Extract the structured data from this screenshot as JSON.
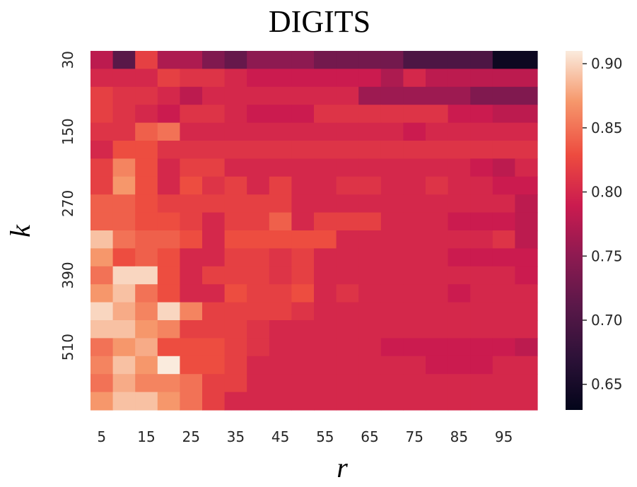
{
  "chart_data": {
    "type": "heatmap",
    "title": "DIGITS",
    "xlabel": "r",
    "ylabel": "k",
    "x_tick_labels": [
      "5",
      "15",
      "25",
      "35",
      "45",
      "55",
      "65",
      "75",
      "85",
      "95"
    ],
    "y_tick_labels": [
      "30",
      "150",
      "270",
      "390",
      "510"
    ],
    "x": [
      5,
      10,
      15,
      20,
      25,
      30,
      35,
      40,
      45,
      50,
      55,
      60,
      65,
      70,
      75,
      80,
      85,
      90,
      95,
      100
    ],
    "y": [
      30,
      60,
      90,
      120,
      150,
      180,
      210,
      240,
      270,
      300,
      330,
      360,
      390,
      420,
      450,
      480,
      510,
      540,
      570,
      600
    ],
    "colorbar": {
      "range": [
        0.63,
        0.91
      ],
      "ticks": [
        "0.65",
        "0.70",
        "0.75",
        "0.80",
        "0.85",
        "0.90"
      ]
    },
    "values": [
      [
        0.78,
        0.71,
        0.82,
        0.77,
        0.77,
        0.74,
        0.72,
        0.75,
        0.75,
        0.75,
        0.73,
        0.73,
        0.73,
        0.73,
        0.7,
        0.7,
        0.7,
        0.7,
        0.64,
        0.64
      ],
      [
        0.8,
        0.8,
        0.8,
        0.82,
        0.81,
        0.81,
        0.8,
        0.79,
        0.79,
        0.79,
        0.79,
        0.79,
        0.79,
        0.77,
        0.8,
        0.78,
        0.78,
        0.78,
        0.78,
        0.78
      ],
      [
        0.82,
        0.81,
        0.81,
        0.8,
        0.78,
        0.8,
        0.8,
        0.8,
        0.8,
        0.8,
        0.8,
        0.8,
        0.76,
        0.76,
        0.76,
        0.76,
        0.76,
        0.74,
        0.74,
        0.74
      ],
      [
        0.82,
        0.81,
        0.8,
        0.79,
        0.81,
        0.81,
        0.8,
        0.79,
        0.79,
        0.79,
        0.81,
        0.81,
        0.81,
        0.81,
        0.81,
        0.81,
        0.79,
        0.79,
        0.78,
        0.78
      ],
      [
        0.81,
        0.81,
        0.84,
        0.85,
        0.8,
        0.8,
        0.8,
        0.8,
        0.8,
        0.8,
        0.8,
        0.8,
        0.8,
        0.8,
        0.79,
        0.8,
        0.8,
        0.8,
        0.8,
        0.8
      ],
      [
        0.8,
        0.83,
        0.83,
        0.81,
        0.81,
        0.81,
        0.81,
        0.81,
        0.81,
        0.81,
        0.81,
        0.81,
        0.81,
        0.81,
        0.81,
        0.81,
        0.81,
        0.81,
        0.81,
        0.81
      ],
      [
        0.82,
        0.86,
        0.83,
        0.8,
        0.82,
        0.82,
        0.8,
        0.8,
        0.8,
        0.8,
        0.8,
        0.8,
        0.8,
        0.8,
        0.8,
        0.8,
        0.8,
        0.79,
        0.78,
        0.8
      ],
      [
        0.82,
        0.87,
        0.83,
        0.8,
        0.83,
        0.81,
        0.82,
        0.8,
        0.82,
        0.8,
        0.8,
        0.81,
        0.81,
        0.8,
        0.8,
        0.81,
        0.8,
        0.8,
        0.79,
        0.79
      ],
      [
        0.84,
        0.84,
        0.83,
        0.82,
        0.82,
        0.82,
        0.82,
        0.82,
        0.82,
        0.8,
        0.8,
        0.8,
        0.8,
        0.8,
        0.8,
        0.8,
        0.8,
        0.8,
        0.8,
        0.78
      ],
      [
        0.84,
        0.84,
        0.83,
        0.83,
        0.82,
        0.8,
        0.82,
        0.82,
        0.84,
        0.8,
        0.82,
        0.82,
        0.82,
        0.8,
        0.8,
        0.8,
        0.79,
        0.79,
        0.79,
        0.78
      ],
      [
        0.89,
        0.85,
        0.84,
        0.84,
        0.83,
        0.8,
        0.83,
        0.83,
        0.83,
        0.83,
        0.83,
        0.8,
        0.8,
        0.8,
        0.8,
        0.8,
        0.8,
        0.8,
        0.81,
        0.78
      ],
      [
        0.87,
        0.83,
        0.84,
        0.83,
        0.8,
        0.8,
        0.82,
        0.82,
        0.81,
        0.82,
        0.8,
        0.8,
        0.8,
        0.8,
        0.8,
        0.8,
        0.79,
        0.79,
        0.79,
        0.79
      ],
      [
        0.85,
        0.9,
        0.9,
        0.83,
        0.8,
        0.82,
        0.82,
        0.82,
        0.81,
        0.82,
        0.8,
        0.8,
        0.8,
        0.8,
        0.8,
        0.8,
        0.8,
        0.8,
        0.8,
        0.79
      ],
      [
        0.87,
        0.89,
        0.85,
        0.83,
        0.8,
        0.8,
        0.83,
        0.82,
        0.82,
        0.83,
        0.8,
        0.81,
        0.8,
        0.8,
        0.8,
        0.8,
        0.79,
        0.8,
        0.8,
        0.8
      ],
      [
        0.9,
        0.88,
        0.86,
        0.9,
        0.86,
        0.82,
        0.82,
        0.82,
        0.82,
        0.81,
        0.8,
        0.8,
        0.8,
        0.8,
        0.8,
        0.8,
        0.8,
        0.8,
        0.8,
        0.8
      ],
      [
        0.89,
        0.89,
        0.87,
        0.86,
        0.82,
        0.82,
        0.82,
        0.81,
        0.8,
        0.8,
        0.8,
        0.8,
        0.8,
        0.8,
        0.8,
        0.8,
        0.8,
        0.8,
        0.8,
        0.8
      ],
      [
        0.85,
        0.87,
        0.88,
        0.83,
        0.83,
        0.83,
        0.82,
        0.81,
        0.8,
        0.8,
        0.8,
        0.8,
        0.8,
        0.79,
        0.79,
        0.79,
        0.79,
        0.79,
        0.79,
        0.78
      ],
      [
        0.86,
        0.89,
        0.87,
        0.91,
        0.83,
        0.83,
        0.82,
        0.8,
        0.8,
        0.8,
        0.8,
        0.8,
        0.8,
        0.8,
        0.8,
        0.79,
        0.79,
        0.79,
        0.8,
        0.8
      ],
      [
        0.85,
        0.88,
        0.86,
        0.86,
        0.85,
        0.82,
        0.82,
        0.8,
        0.8,
        0.8,
        0.8,
        0.8,
        0.8,
        0.8,
        0.8,
        0.8,
        0.8,
        0.8,
        0.8,
        0.8
      ],
      [
        0.87,
        0.89,
        0.89,
        0.87,
        0.85,
        0.82,
        0.8,
        0.8,
        0.8,
        0.8,
        0.8,
        0.8,
        0.8,
        0.8,
        0.8,
        0.8,
        0.8,
        0.8,
        0.8,
        0.8
      ]
    ]
  }
}
